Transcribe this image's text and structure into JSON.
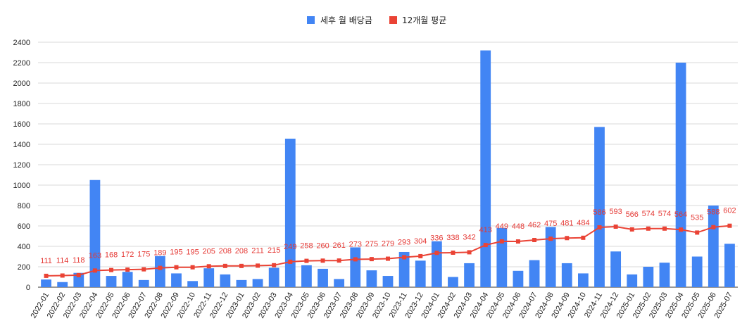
{
  "chart_data": {
    "type": "bar",
    "title": "",
    "xlabel": "",
    "ylabel": "",
    "ylim": [
      0,
      2400
    ],
    "yticks": [
      0,
      200,
      400,
      600,
      800,
      1000,
      1200,
      1400,
      1600,
      1800,
      2000,
      2200,
      2400
    ],
    "grid": true,
    "legend_position": "top-center",
    "categories": [
      "2022-01",
      "2022-02",
      "2022-03",
      "2022-04",
      "2022-05",
      "2022-06",
      "2022-07",
      "2022-08",
      "2022-09",
      "2022-10",
      "2022-11",
      "2022-12",
      "2023-01",
      "2023-02",
      "2023-03",
      "2023-04",
      "2023-05",
      "2023-06",
      "2023-07",
      "2023-08",
      "2023-09",
      "2023-10",
      "2023-11",
      "2023-12",
      "2024-01",
      "2024-02",
      "2024-03",
      "2024-04",
      "2024-05",
      "2024-06",
      "2024-07",
      "2024-08",
      "2024-09",
      "2024-10",
      "2024-11",
      "2024-12",
      "2025-01",
      "2025-02",
      "2025-03",
      "2025-04",
      "2025-05",
      "2025-06",
      "2025-07"
    ],
    "series": [
      {
        "name": "세후 월 배당금",
        "type": "bar",
        "color": "#4285f4",
        "values": [
          75,
          50,
          140,
          1050,
          110,
          150,
          70,
          305,
          135,
          60,
          185,
          125,
          70,
          80,
          190,
          1455,
          215,
          180,
          80,
          390,
          165,
          110,
          345,
          260,
          450,
          100,
          235,
          2320,
          580,
          160,
          265,
          590,
          235,
          135,
          1570,
          350,
          125,
          200,
          240,
          2200,
          300,
          800,
          425
        ]
      },
      {
        "name": "12개월 평균",
        "type": "line",
        "color": "#ea4335",
        "values": [
          111,
          114,
          118,
          163,
          168,
          172,
          175,
          189,
          195,
          195,
          205,
          208,
          208,
          211,
          215,
          249,
          258,
          260,
          261,
          273,
          275,
          279,
          293,
          304,
          336,
          338,
          342,
          413,
          449,
          448,
          462,
          475,
          481,
          484,
          586,
          593,
          566,
          574,
          574,
          564,
          535,
          588,
          602
        ]
      }
    ]
  }
}
